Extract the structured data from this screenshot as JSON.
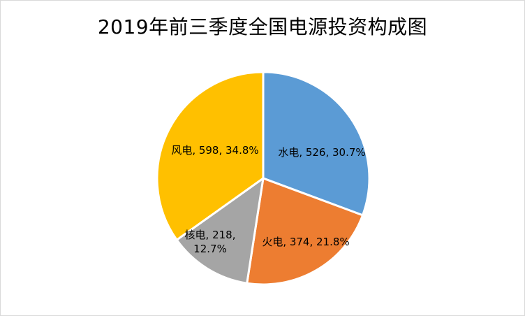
{
  "chart_data": {
    "type": "pie",
    "title": "2019年前三季度全国电源投资构成图",
    "categories": [
      "水电",
      "火电",
      "核电",
      "风电"
    ],
    "values": [
      526,
      374,
      218,
      598
    ],
    "percents": [
      "30.7%",
      "21.8%",
      "12.7%",
      "34.8%"
    ],
    "colors": [
      "#5b9bd5",
      "#ed7d31",
      "#a5a5a5",
      "#ffc000"
    ],
    "labels": [
      [
        "水电, 526, 30.7%"
      ],
      [
        "火电, 374, 21.8%"
      ],
      [
        "核电, 218,",
        "12.7%"
      ],
      [
        "风电, 598, 34.8%"
      ]
    ],
    "legend": "none",
    "start": "12 o'clock, clockwise"
  }
}
